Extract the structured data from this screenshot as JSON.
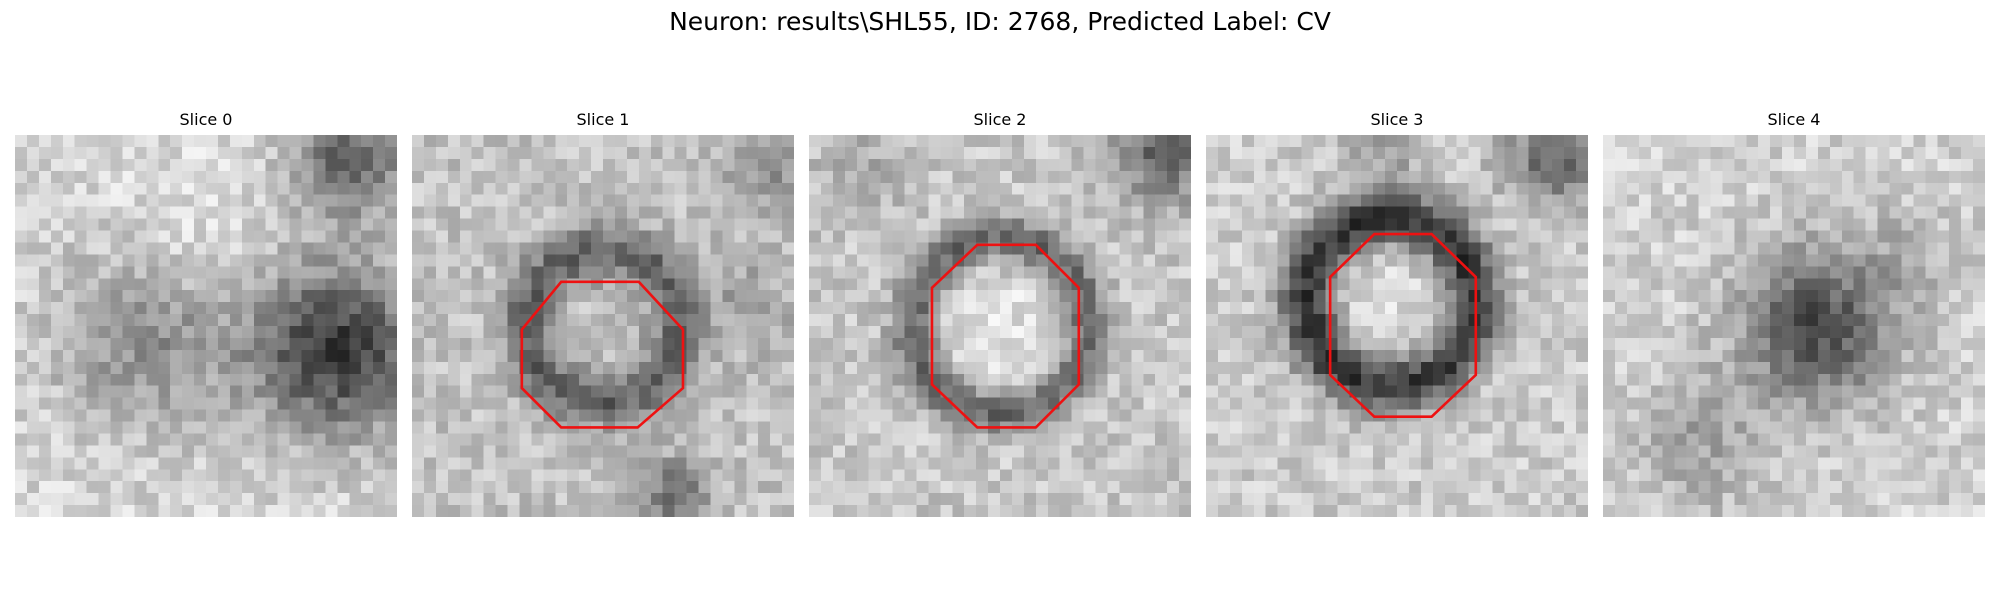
{
  "figure": {
    "title": "Neuron: results\\SHL55, ID: 2768, Predicted Label: CV"
  },
  "contour_color": "#ee1111",
  "slices": [
    {
      "title": "Slice 0",
      "image_description_name": "em-slice-0-image",
      "has_contour": false
    },
    {
      "title": "Slice 1",
      "image_description_name": "em-slice-1-image",
      "has_contour": true
    },
    {
      "title": "Slice 2",
      "image_description_name": "em-slice-2-image",
      "has_contour": true
    },
    {
      "title": "Slice 3",
      "image_description_name": "em-slice-3-image",
      "has_contour": true
    },
    {
      "title": "Slice 4",
      "image_description_name": "em-slice-4-image",
      "has_contour": false
    }
  ]
}
